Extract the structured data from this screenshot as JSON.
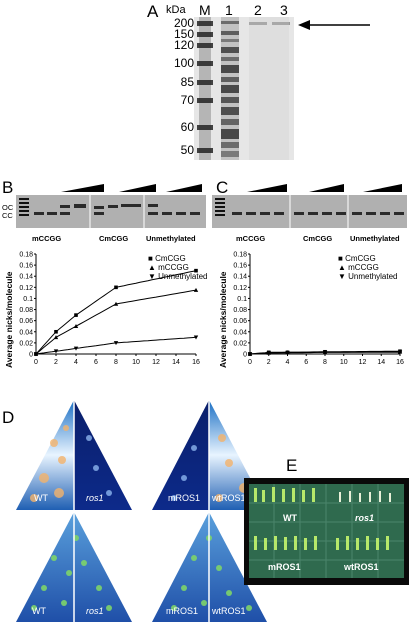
{
  "panels": {
    "A": {
      "label": "A",
      "kda_label": "kDa",
      "lane_labels": [
        "M",
        "1",
        "2",
        "3"
      ],
      "markers": [
        "200",
        "150",
        "120",
        "100",
        "85",
        "70",
        "60",
        "50"
      ]
    },
    "B": {
      "label": "B",
      "gel_side_labels": [
        "OC",
        "CC"
      ],
      "gel_groups": [
        "mCCGG",
        "CmCGG",
        "Unmethylated"
      ],
      "chart_data": {
        "type": "scatter",
        "ylabel": "Average nicks/molecule",
        "x": [
          0,
          2,
          4,
          6,
          8,
          10,
          12,
          14,
          16
        ],
        "ylim": [
          0,
          0.18
        ],
        "yticks": [
          "0",
          "0.02",
          "0.04",
          "0.06",
          "0.08",
          "0.1",
          "0.12",
          "0.14",
          "0.16",
          "0.18"
        ],
        "xticks": [
          "0",
          "2",
          "4",
          "6",
          "8",
          "10",
          "12",
          "14",
          "16"
        ],
        "series": [
          {
            "name": "CmCGG",
            "marker": "square",
            "x": [
              0,
              2,
              4,
              8,
              16
            ],
            "values": [
              0,
              0.04,
              0.07,
              0.12,
              0.15
            ]
          },
          {
            "name": "mCCGG",
            "marker": "triangle",
            "x": [
              0,
              2,
              4,
              8,
              16
            ],
            "values": [
              0,
              0.03,
              0.05,
              0.09,
              0.115
            ]
          },
          {
            "name": "Unmethylated",
            "marker": "triangle-down",
            "x": [
              0,
              2,
              4,
              8,
              16
            ],
            "values": [
              0,
              0.005,
              0.01,
              0.02,
              0.03
            ]
          }
        ]
      }
    },
    "C": {
      "label": "C",
      "gel_groups": [
        "mCCGG",
        "CmCGG",
        "Unmethylated"
      ],
      "chart_data": {
        "type": "scatter",
        "ylabel": "Average nicks/molecule",
        "ylim": [
          0,
          0.18
        ],
        "yticks": [
          "0",
          "0.02",
          "0.04",
          "0.06",
          "0.08",
          "0.1",
          "0.12",
          "0.14",
          "0.16",
          "0.18"
        ],
        "xticks": [
          "0",
          "2",
          "4",
          "6",
          "8",
          "10",
          "12",
          "14",
          "16"
        ],
        "series": [
          {
            "name": "CmCGG",
            "marker": "square",
            "x": [
              0,
              2,
              4,
              8,
              16
            ],
            "values": [
              0,
              0.003,
              0.003,
              0.004,
              0.005
            ]
          },
          {
            "name": "mCCGG",
            "marker": "triangle",
            "x": [
              0,
              2,
              4,
              8,
              16
            ],
            "values": [
              0,
              0.002,
              0.003,
              0.003,
              0.004
            ]
          },
          {
            "name": "Unmethylated",
            "marker": "triangle-down",
            "x": [
              0,
              2,
              4,
              8,
              16
            ],
            "values": [
              0,
              0.002,
              0.002,
              0.003,
              0.003
            ]
          }
        ]
      }
    },
    "D": {
      "label": "D",
      "left_labels": [
        "WT",
        "ros1"
      ],
      "right_labels": [
        "mROS1",
        "wtROS1"
      ],
      "bottom_left_labels": [
        "WT",
        "ros1"
      ],
      "bottom_right_labels": [
        "mROS1",
        "wtROS1"
      ]
    },
    "E": {
      "label": "E",
      "row1_labels": [
        "WT",
        "ros1"
      ],
      "row2_labels": [
        "mROS1",
        "wtROS1"
      ]
    }
  }
}
